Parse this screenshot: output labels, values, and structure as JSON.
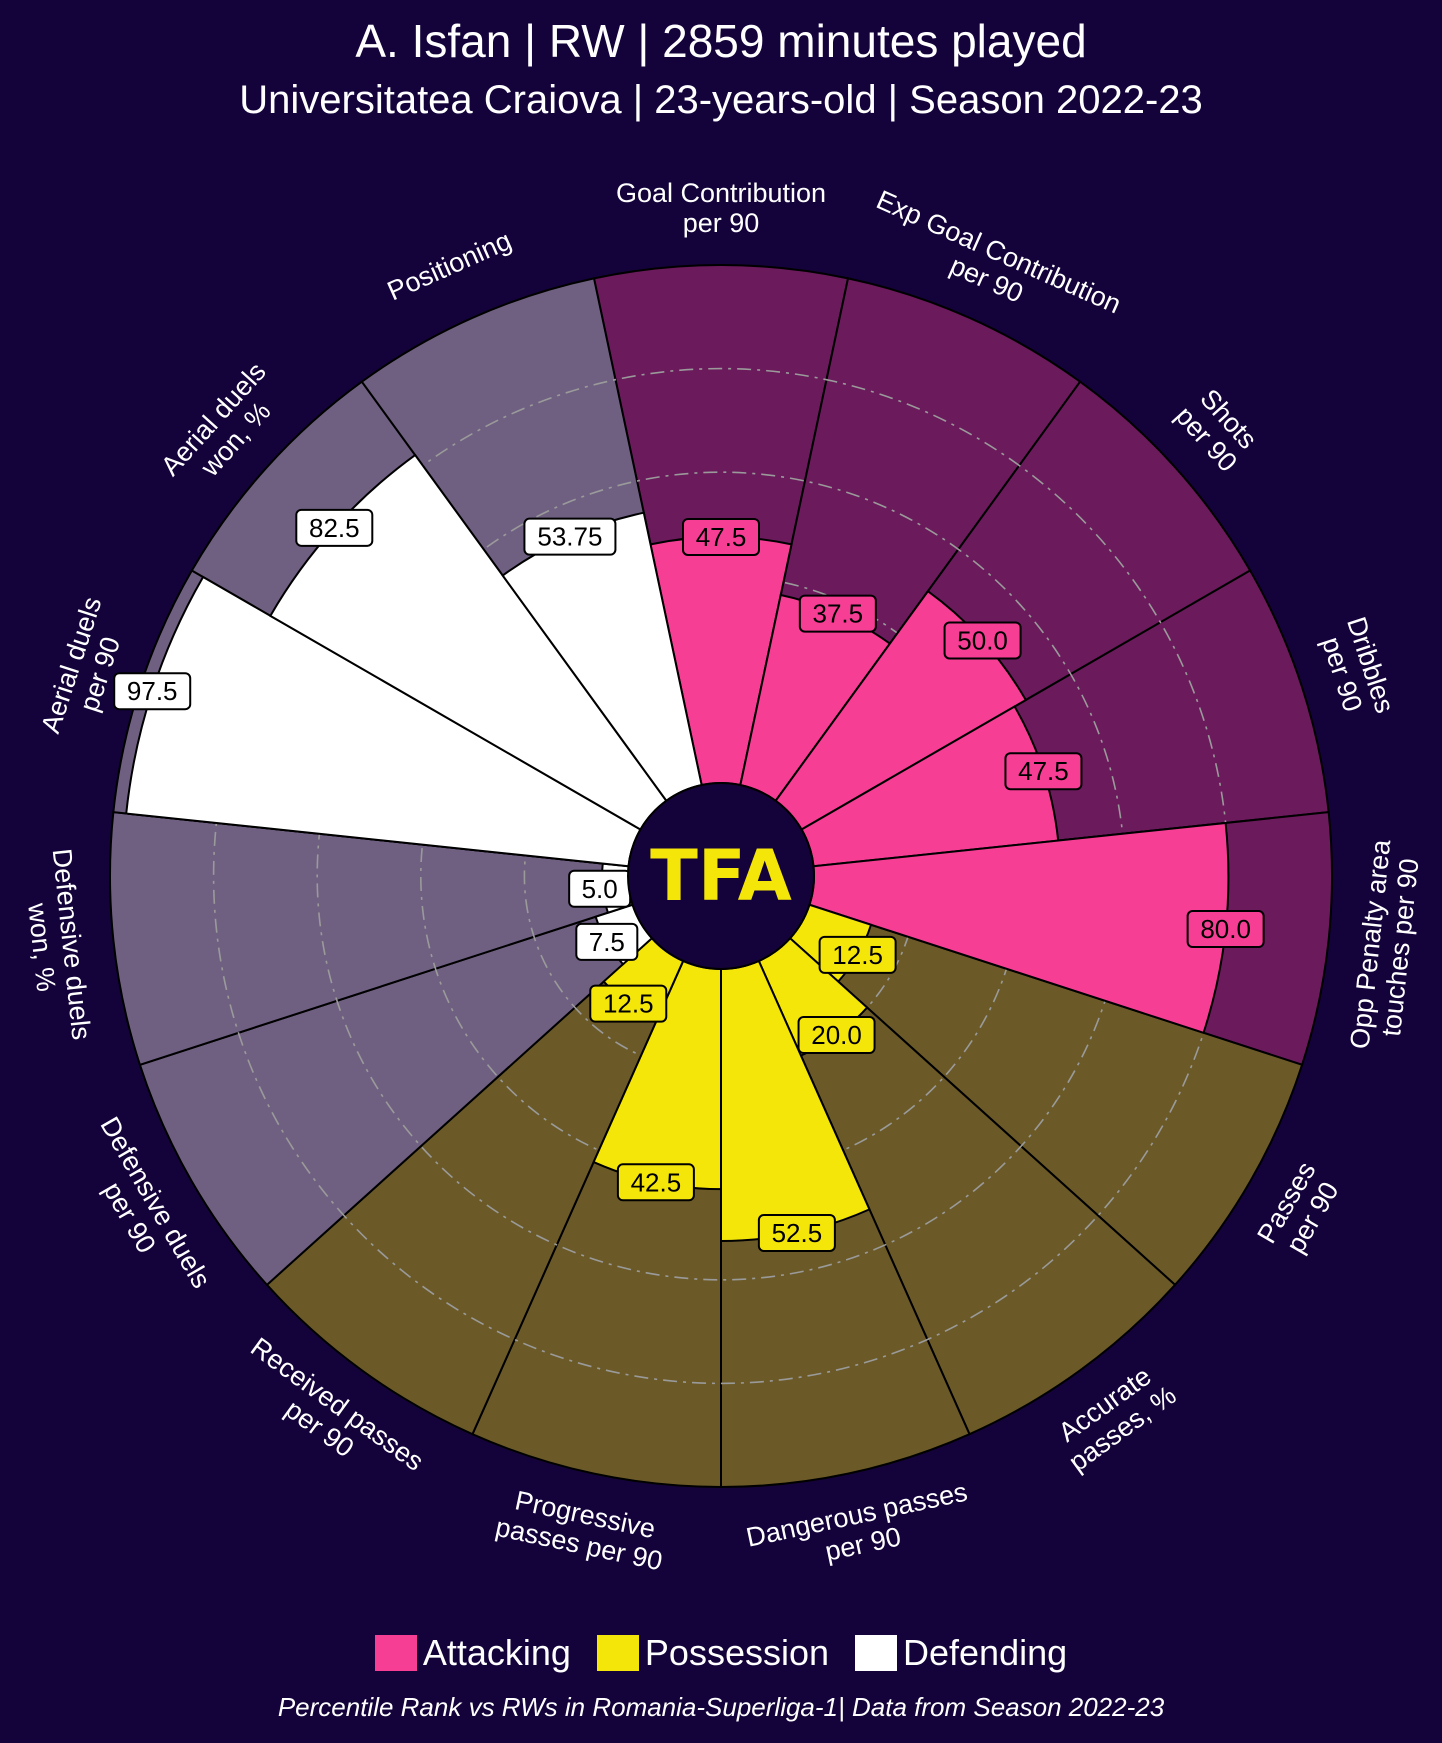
{
  "header": {
    "title": "A. Isfan | RW | 2859 minutes played",
    "subtitle": "Universitatea Craiova | 23-years-old | Season 2022-23"
  },
  "logo_text": "TFA",
  "legend": [
    {
      "label": "Attacking",
      "color": "#f53e94"
    },
    {
      "label": "Possession",
      "color": "#f5e60a"
    },
    {
      "label": "Defending",
      "color": "#ffffff"
    }
  ],
  "footer": "Percentile Rank vs RWs in Romania-Superliga-1| Data from Season 2022-23",
  "chart_data": {
    "type": "polar-bar",
    "title": "A. Isfan | RW | 2859 minutes played",
    "rlim": [
      0,
      100
    ],
    "grid": [
      20,
      40,
      60,
      80
    ],
    "labels": [
      [
        "Goal Contribution",
        "per 90"
      ],
      [
        "Exp Goal Contribution",
        "per 90"
      ],
      [
        "Shots",
        "per 90"
      ],
      [
        "Dribbles",
        "per 90"
      ],
      [
        "Opp Penalty area",
        "touches per 90"
      ],
      [
        "Passes",
        "per 90"
      ],
      [
        "Accurate",
        "passes, %"
      ],
      [
        "Dangerous passes",
        "per 90"
      ],
      [
        "Progressive",
        "passes per 90"
      ],
      [
        "Received passes",
        "per 90"
      ],
      [
        "Defensive duels",
        "per 90"
      ],
      [
        "Defensive duels",
        "won, %"
      ],
      [
        "Aerial duels",
        "per 90"
      ],
      [
        "Aerial duels",
        "won, %"
      ],
      [
        "Positioning"
      ]
    ],
    "values": [
      47.5,
      37.5,
      50.0,
      47.5,
      80.0,
      12.5,
      20.0,
      52.5,
      42.5,
      12.5,
      7.5,
      5.0,
      97.5,
      82.5,
      53.75
    ],
    "value_labels": [
      "47.5",
      "37.5",
      "50.0",
      "47.5",
      "80.0",
      "12.5",
      "20.0",
      "52.5",
      "42.5",
      "12.5",
      "7.5",
      "5.0",
      "97.5",
      "82.5",
      "53.75"
    ],
    "groups": [
      "Attacking",
      "Attacking",
      "Attacking",
      "Attacking",
      "Attacking",
      "Possession",
      "Possession",
      "Possession",
      "Possession",
      "Possession",
      "Defending",
      "Defending",
      "Defending",
      "Defending",
      "Defending"
    ],
    "colors": {
      "Attacking": {
        "fill": "#f53e94",
        "bg": "#6b1a5c"
      },
      "Possession": {
        "fill": "#f5e60a",
        "bg": "#6b5a28"
      },
      "Defending": {
        "fill": "#ffffff",
        "bg": "#6f6082"
      }
    },
    "background": "#14033a"
  }
}
